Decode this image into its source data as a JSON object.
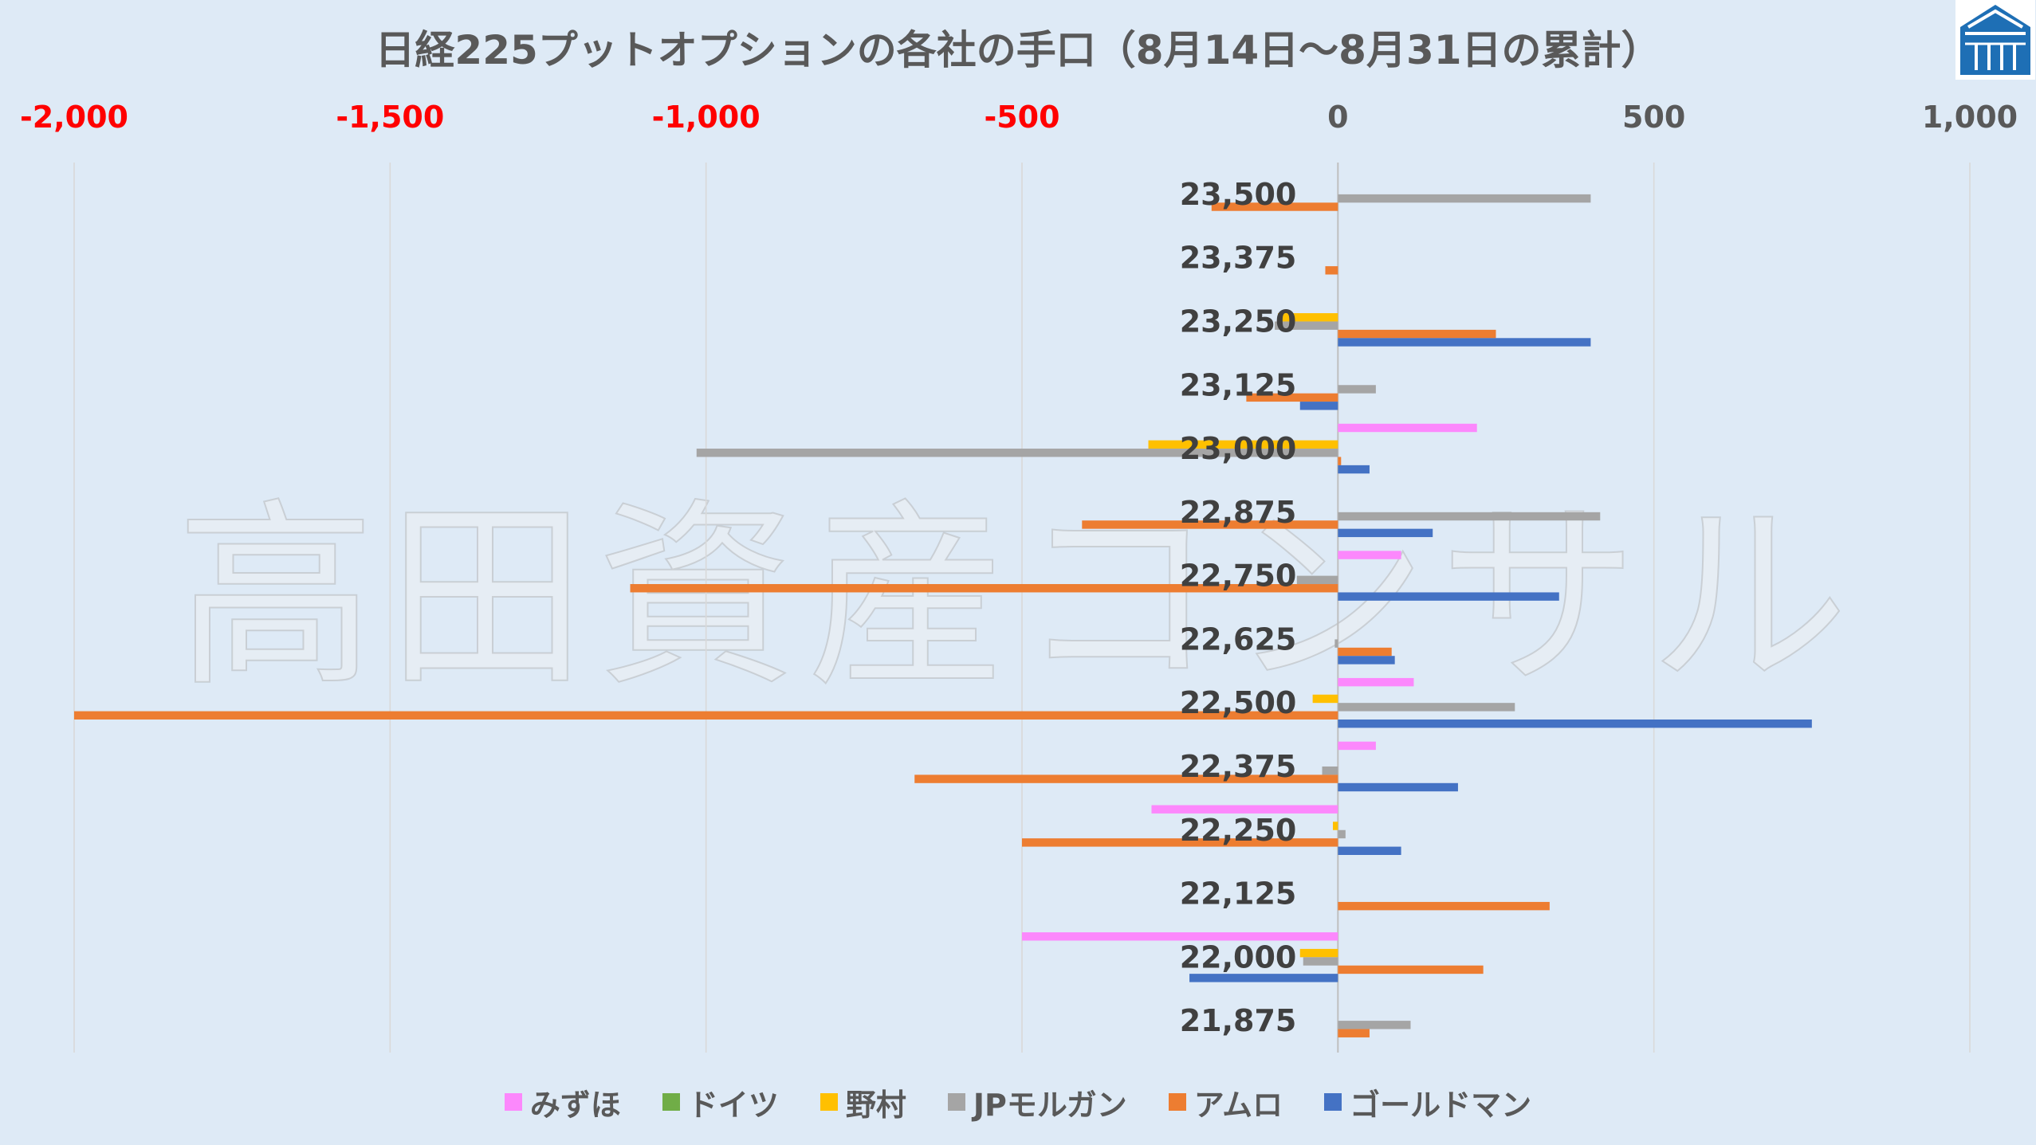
{
  "watermark": "高田資産コンサル",
  "chart_data": {
    "type": "bar",
    "orientation": "horizontal",
    "title": "日経225プットオプションの各社の手口（8月14日～8月31日の累計）",
    "categories": [
      "23,500",
      "23,375",
      "23,250",
      "23,125",
      "23,000",
      "22,875",
      "22,750",
      "22,625",
      "22,500",
      "22,375",
      "22,250",
      "22,125",
      "22,000",
      "21,875"
    ],
    "series": [
      {
        "name": "みずほ",
        "color": "#fc88fc",
        "values": [
          0,
          0,
          0,
          0,
          220,
          0,
          100,
          0,
          120,
          60,
          -295,
          0,
          -500,
          0
        ]
      },
      {
        "name": "ドイツ",
        "color": "#70ad47",
        "values": [
          0,
          0,
          0,
          0,
          0,
          0,
          0,
          0,
          0,
          0,
          0,
          0,
          0,
          0
        ]
      },
      {
        "name": "野村",
        "color": "#ffc000",
        "values": [
          0,
          0,
          -95,
          0,
          -300,
          0,
          0,
          0,
          -40,
          0,
          -8,
          0,
          -60,
          0
        ]
      },
      {
        "name": "JPモルガン",
        "color": "#a5a5a5",
        "values": [
          400,
          0,
          -100,
          60,
          -1015,
          415,
          -65,
          -5,
          280,
          -25,
          12,
          0,
          -55,
          115
        ]
      },
      {
        "name": "アムロ",
        "color": "#ed7d31",
        "values": [
          -200,
          -20,
          250,
          -145,
          5,
          -405,
          -1120,
          85,
          -2000,
          -670,
          -500,
          335,
          230,
          50
        ]
      },
      {
        "name": "ゴールドマン",
        "color": "#4472c4",
        "values": [
          0,
          0,
          400,
          -60,
          50,
          150,
          350,
          90,
          750,
          190,
          100,
          0,
          -235,
          0
        ]
      }
    ],
    "xlim": [
      -2000,
      1000
    ],
    "xticks": [
      -2000,
      -1500,
      -1000,
      -500,
      0,
      500,
      1000
    ],
    "xtick_labels": [
      "-2,000",
      "-1,500",
      "-1,000",
      "-500",
      "0",
      "500",
      "1,000"
    ],
    "value_axis_position": "top",
    "grid": true,
    "legend_position": "bottom",
    "colors": {
      "negative_tick_label": "#ff0000",
      "tick_label": "#595959",
      "category_label": "#404040",
      "gridline": "#d9d9d9",
      "zero_axis": "#bfbfbf",
      "background": "#deeaf6"
    }
  }
}
